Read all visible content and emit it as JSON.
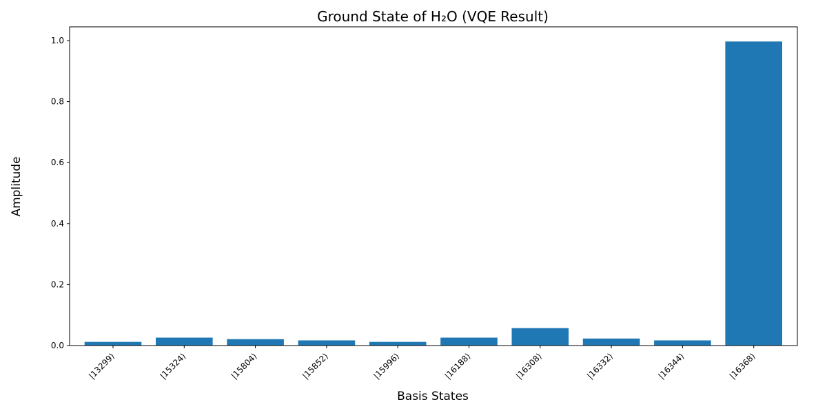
{
  "chart_data": {
    "type": "bar",
    "title": "Ground State of H₂O (VQE Result)",
    "xlabel": "Basis States",
    "ylabel": "Amplitude",
    "categories": [
      "|13299⟩",
      "|15324⟩",
      "|15804⟩",
      "|15852⟩",
      "|15996⟩",
      "|16188⟩",
      "|16308⟩",
      "|16332⟩",
      "|16344⟩",
      "|16368⟩"
    ],
    "values": [
      0.012,
      0.026,
      0.021,
      0.017,
      0.012,
      0.026,
      0.057,
      0.023,
      0.017,
      0.997
    ],
    "ylim": [
      0,
      1.045
    ],
    "yticks": [
      0.0,
      0.2,
      0.4,
      0.6,
      0.8,
      1.0
    ],
    "ytick_labels": [
      "0.0",
      "0.2",
      "0.4",
      "0.6",
      "0.8",
      "1.0"
    ],
    "grid": false,
    "legend": "none",
    "bar_color": "#1f77b4"
  }
}
